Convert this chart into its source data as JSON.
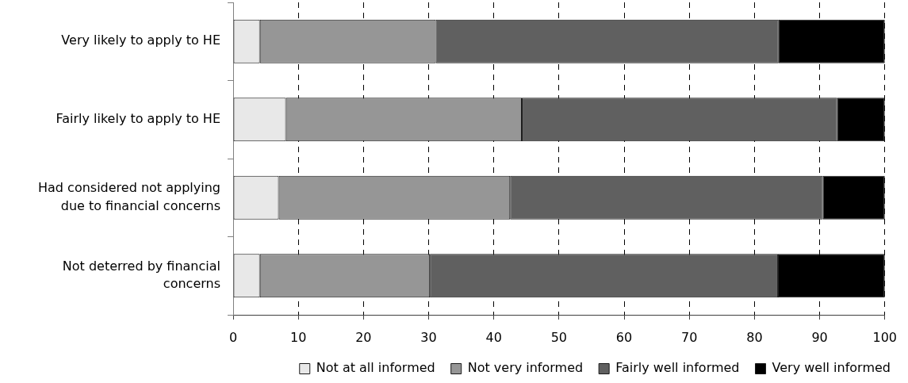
{
  "chart_data": {
    "type": "bar",
    "orientation": "horizontal",
    "stacked": true,
    "categories": [
      "Very likely to apply to HE",
      "Fairly likely to apply to HE",
      "Had considered not applying due to financial concerns",
      "Not deterred by financial concerns"
    ],
    "series": [
      {
        "name": "Not at all informed",
        "color": "#e8e8e8",
        "values": [
          4.1,
          8.1,
          7.0,
          4.1
        ]
      },
      {
        "name": "Not very informed",
        "color": "#969696",
        "values": [
          27.0,
          36.2,
          35.5,
          26.1
        ]
      },
      {
        "name": "Fairly well informed",
        "color": "#606060",
        "values": [
          52.6,
          48.4,
          48.0,
          53.4
        ]
      },
      {
        "name": "Very well informed",
        "color": "#000000",
        "values": [
          16.3,
          7.3,
          9.5,
          16.4
        ]
      }
    ],
    "xlim": [
      0,
      100
    ],
    "xticks": [
      0,
      10,
      20,
      30,
      40,
      50,
      60,
      70,
      80,
      90,
      100
    ],
    "grid": "x",
    "legend": "bottom"
  }
}
